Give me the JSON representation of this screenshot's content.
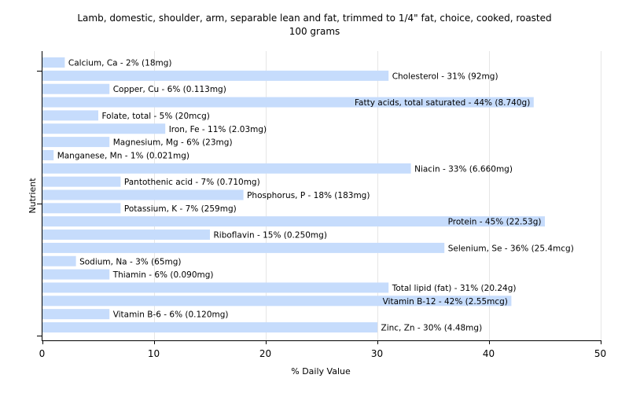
{
  "chart_data": {
    "type": "bar",
    "orientation": "horizontal",
    "title": "Lamb, domestic, shoulder, arm, separable lean and fat, trimmed to 1/4\" fat, choice, cooked, roasted",
    "subtitle": "100 grams",
    "xlabel": "% Daily Value",
    "ylabel": "Nutrient",
    "xlim": [
      0,
      50
    ],
    "xticks": [
      0,
      10,
      20,
      30,
      40,
      50
    ],
    "grid": true,
    "bar_color": "#c6dcfc",
    "categories": [
      "Calcium, Ca",
      "Cholesterol",
      "Copper, Cu",
      "Fatty acids, total saturated",
      "Folate, total",
      "Iron, Fe",
      "Magnesium, Mg",
      "Manganese, Mn",
      "Niacin",
      "Pantothenic acid",
      "Phosphorus, P",
      "Potassium, K",
      "Protein",
      "Riboflavin",
      "Selenium, Se",
      "Sodium, Na",
      "Thiamin",
      "Total lipid (fat)",
      "Vitamin B-12",
      "Vitamin B-6",
      "Zinc, Zn"
    ],
    "values": [
      2,
      31,
      6,
      44,
      5,
      11,
      6,
      1,
      33,
      7,
      18,
      7,
      45,
      15,
      36,
      3,
      6,
      31,
      42,
      6,
      30
    ],
    "labels": [
      "Calcium, Ca - 2% (18mg)",
      "Cholesterol - 31% (92mg)",
      "Copper, Cu - 6% (0.113mg)",
      "Fatty acids, total saturated - 44% (8.740g)",
      "Folate, total - 5% (20mcg)",
      "Iron, Fe - 11% (2.03mg)",
      "Magnesium, Mg - 6% (23mg)",
      "Manganese, Mn - 1% (0.021mg)",
      "Niacin - 33% (6.660mg)",
      "Pantothenic acid - 7% (0.710mg)",
      "Phosphorus, P - 18% (183mg)",
      "Potassium, K - 7% (259mg)",
      "Protein - 45% (22.53g)",
      "Riboflavin - 15% (0.250mg)",
      "Selenium, Se - 36% (25.4mcg)",
      "Sodium, Na - 3% (65mg)",
      "Thiamin - 6% (0.090mg)",
      "Total lipid (fat) - 31% (20.24g)",
      "Vitamin B-12 - 42% (2.55mcg)",
      "Vitamin B-6 - 6% (0.120mg)",
      "Zinc, Zn - 30% (4.48mg)"
    ]
  }
}
